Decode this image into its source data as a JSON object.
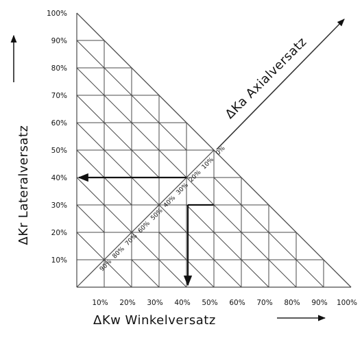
{
  "diagram": {
    "y_ticks": [
      "10%",
      "20%",
      "30%",
      "40%",
      "50%",
      "60%",
      "70%",
      "80%",
      "90%",
      "100%"
    ],
    "x_ticks": [
      "10%",
      "20%",
      "30%",
      "40%",
      "50%",
      "60%",
      "70%",
      "80%",
      "90%",
      "100%"
    ],
    "diagonal_ticks": [
      "90%",
      "80%",
      "70%",
      "60%",
      "50%",
      "40%",
      "30%",
      "20%",
      "10%",
      "0%"
    ],
    "y_axis_label": "ΔKr Lateralversatz",
    "x_axis_label": "ΔKw Winkelversatz",
    "diagonal_axis_label": "ΔKa Axialversatz",
    "example": {
      "x_percent": 40,
      "axial_percent": 30,
      "lateral_percent": 40
    },
    "colors": {
      "line": "#4a4a4a",
      "arrow": "#111111"
    }
  }
}
